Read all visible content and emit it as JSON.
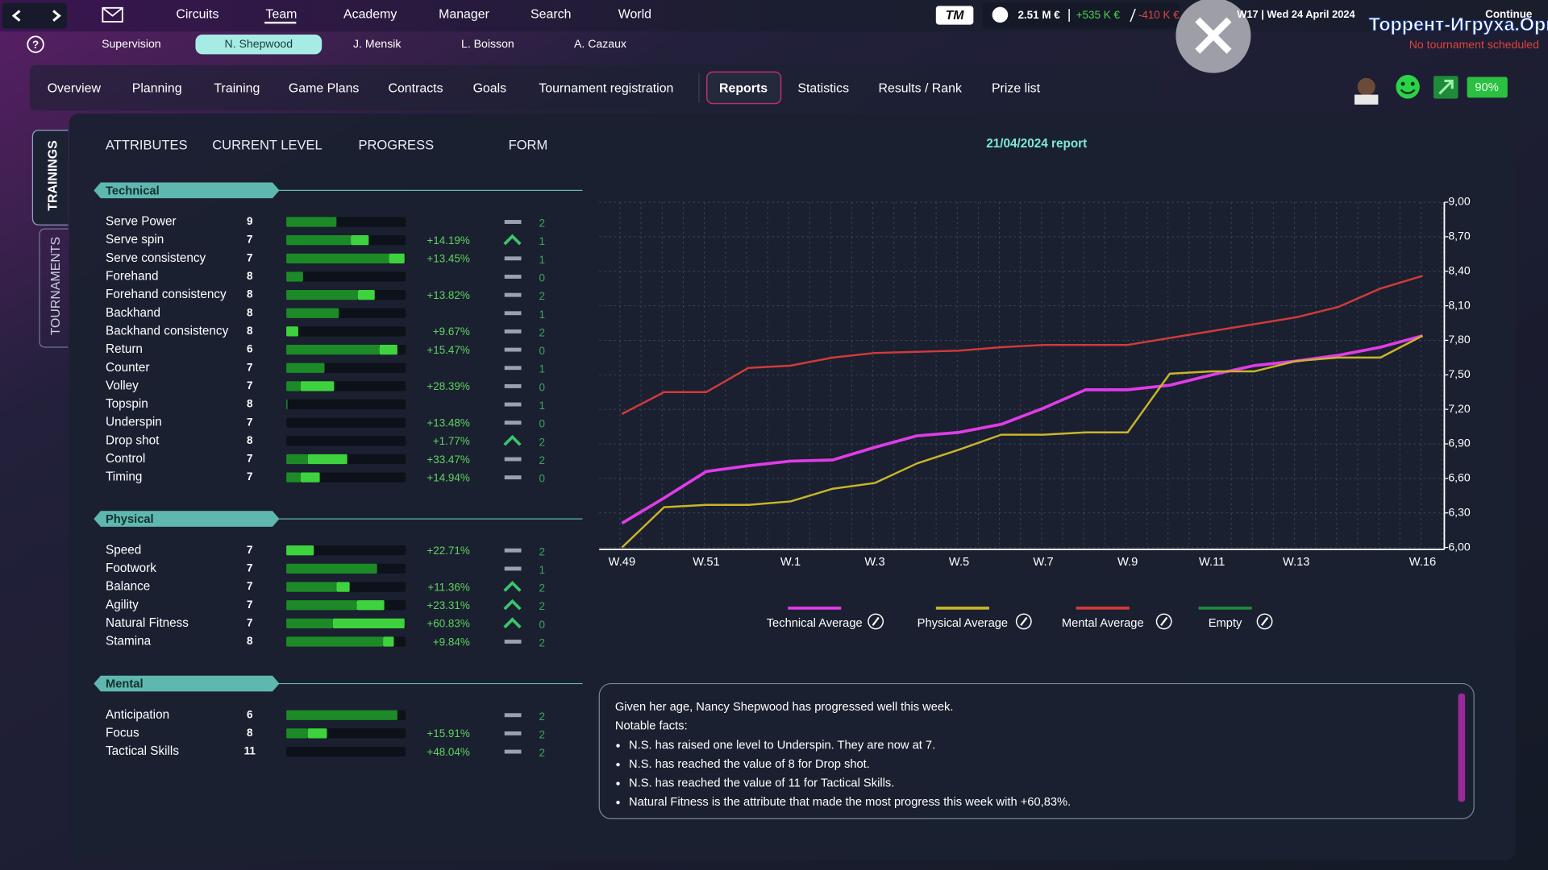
{
  "top_nav": [
    "Circuits",
    "Team",
    "Academy",
    "Manager",
    "Search",
    "World"
  ],
  "logo": "TM",
  "finance": {
    "balance": "2.51 M €",
    "income": "+535 K €",
    "expense": "-410 K €"
  },
  "date": "W17 | Wed 24 April 2024",
  "continue": "Continue",
  "watermark": "Торрент-Игруха.Орг",
  "tournament_status": "No tournament scheduled",
  "help_icon": "?",
  "players": [
    "Supervision",
    "N. Shepwood",
    "J. Mensik",
    "L. Boisson",
    "A. Cazaux"
  ],
  "tabs": [
    "Overview",
    "Planning",
    "Training",
    "Game Plans",
    "Contracts",
    "Goals",
    "Tournament registration",
    "Reports",
    "Statistics",
    "Results / Rank",
    "Prize list"
  ],
  "morale": "90%",
  "side_tabs": [
    "TRAININGS",
    "TOURNAMENTS"
  ],
  "columns": [
    "ATTRIBUTES",
    "CURRENT LEVEL",
    "PROGRESS",
    "FORM"
  ],
  "sections": [
    {
      "title": "Technical",
      "rows": [
        {
          "name": "Serve Power",
          "level": 9,
          "bar": 42,
          "gain": 0,
          "form_trend": "flat",
          "form": 2
        },
        {
          "name": "Serve spin",
          "level": 7,
          "bar": 54,
          "gain": 15,
          "progress": 14.19,
          "progress_label": "+14.19%",
          "form_trend": "up",
          "form": 1
        },
        {
          "name": "Serve consistency",
          "level": 7,
          "bar": 86,
          "gain": 13,
          "progress": 13.45,
          "progress_label": "+13.45%",
          "form_trend": "flat",
          "form": 1
        },
        {
          "name": "Forehand",
          "level": 8,
          "bar": 14,
          "gain": 0,
          "form_trend": "flat",
          "form": 0
        },
        {
          "name": "Forehand consistency",
          "level": 8,
          "bar": 60,
          "gain": 14,
          "progress": 13.82,
          "progress_label": "+13.82%",
          "form_trend": "flat",
          "form": 2
        },
        {
          "name": "Backhand",
          "level": 8,
          "bar": 44,
          "gain": 0,
          "form_trend": "flat",
          "form": 1
        },
        {
          "name": "Backhand consistency",
          "level": 8,
          "bar": 0,
          "gain": 10,
          "progress": 9.67,
          "progress_label": "+9.67%",
          "form_trend": "flat",
          "form": 2
        },
        {
          "name": "Return",
          "level": 6,
          "bar": 78,
          "gain": 15,
          "progress": 15.47,
          "progress_label": "+15.47%",
          "form_trend": "flat",
          "form": 0
        },
        {
          "name": "Counter",
          "level": 7,
          "bar": 32,
          "gain": 0,
          "form_trend": "flat",
          "form": 1
        },
        {
          "name": "Volley",
          "level": 7,
          "bar": 12,
          "gain": 28,
          "progress": 28.39,
          "progress_label": "+28.39%",
          "form_trend": "flat",
          "form": 0
        },
        {
          "name": "Topspin",
          "level": 8,
          "bar": 1,
          "gain": 0,
          "form_trend": "flat",
          "form": 1
        },
        {
          "name": "Underspin",
          "level": 7,
          "bar": 0,
          "gain": 0,
          "progress": 13.48,
          "progress_label": "+13.48%",
          "form_trend": "flat",
          "form": 0
        },
        {
          "name": "Drop shot",
          "level": 8,
          "bar": 0,
          "gain": 0,
          "progress": 1.77,
          "progress_label": "+1.77%",
          "form_trend": "up",
          "form": 2
        },
        {
          "name": "Control",
          "level": 7,
          "bar": 18,
          "gain": 33,
          "progress": 33.47,
          "progress_label": "+33.47%",
          "form_trend": "flat",
          "form": 2
        },
        {
          "name": "Timing",
          "level": 7,
          "bar": 12,
          "gain": 16,
          "progress": 14.94,
          "progress_label": "+14.94%",
          "form_trend": "flat",
          "form": 0
        }
      ]
    },
    {
      "title": "Physical",
      "rows": [
        {
          "name": "Speed",
          "level": 7,
          "bar": 0,
          "gain": 23,
          "progress": 22.71,
          "progress_label": "+22.71%",
          "form_trend": "flat",
          "form": 2
        },
        {
          "name": "Footwork",
          "level": 7,
          "bar": 76,
          "gain": 0,
          "form_trend": "flat",
          "form": 1
        },
        {
          "name": "Balance",
          "level": 7,
          "bar": 42,
          "gain": 11,
          "progress": 11.36,
          "progress_label": "+11.36%",
          "form_trend": "up",
          "form": 2
        },
        {
          "name": "Agility",
          "level": 7,
          "bar": 59,
          "gain": 23,
          "progress": 23.31,
          "progress_label": "+23.31%",
          "form_trend": "up",
          "form": 2
        },
        {
          "name": "Natural Fitness",
          "level": 7,
          "bar": 39,
          "gain": 60,
          "progress": 60.83,
          "progress_label": "+60.83%",
          "form_trend": "up",
          "form": 0
        },
        {
          "name": "Stamina",
          "level": 8,
          "bar": 81,
          "gain": 9,
          "progress": 9.84,
          "progress_label": "+9.84%",
          "form_trend": "flat",
          "form": 2
        }
      ]
    },
    {
      "title": "Mental",
      "rows": [
        {
          "name": "Anticipation",
          "level": 6,
          "bar": 93,
          "gain": 0,
          "form_trend": "flat",
          "form": 2
        },
        {
          "name": "Focus",
          "level": 8,
          "bar": 18,
          "gain": 16,
          "progress": 15.91,
          "progress_label": "+15.91%",
          "form_trend": "flat",
          "form": 2
        },
        {
          "name": "Tactical Skills",
          "level": 11,
          "bar": 0,
          "gain": 0,
          "progress": 48.04,
          "progress_label": "+48.04%",
          "form_trend": "flat",
          "form": 2
        }
      ]
    }
  ],
  "report": {
    "lines": [
      "Given her age, Nancy Shepwood has progressed well this week.",
      "Notable facts:"
    ],
    "bullets": [
      "N.S. has raised one level to Underspin. They are now at 7.",
      "N.S. has reached the value of 8 for Drop shot.",
      "N.S. has reached the value of 11 for Tactical Skills.",
      "Natural Fitness is the attribute that made the most progress this week with +60,83%."
    ]
  },
  "chart_data": {
    "type": "line",
    "title": "21/04/2024 report",
    "categories": [
      "W.49",
      null,
      "W.51",
      null,
      "W.1",
      null,
      "W.3",
      null,
      "W.5",
      null,
      "W.7",
      null,
      "W.9",
      null,
      "W.11",
      null,
      "W.13",
      null,
      null,
      "W.16"
    ],
    "series": [
      {
        "name": "Technical Average",
        "color": "#e03ce8",
        "values": [
          6.21,
          6.43,
          6.66,
          6.71,
          6.75,
          6.76,
          6.87,
          6.97,
          7.0,
          7.07,
          7.21,
          7.37,
          7.37,
          7.41,
          7.5,
          7.58,
          7.62,
          7.67,
          7.74,
          7.84
        ]
      },
      {
        "name": "Physical Average",
        "color": "#c9b52a",
        "values": [
          6.0,
          6.35,
          6.37,
          6.37,
          6.4,
          6.51,
          6.56,
          6.73,
          6.85,
          6.98,
          6.98,
          7.0,
          7.0,
          7.51,
          7.53,
          7.53,
          7.62,
          7.65,
          7.65,
          7.84
        ]
      },
      {
        "name": "Mental Average",
        "color": "#d23a3a",
        "values": [
          7.16,
          7.35,
          7.35,
          7.56,
          7.58,
          7.65,
          7.69,
          7.7,
          7.71,
          7.74,
          7.76,
          7.76,
          7.76,
          7.82,
          7.88,
          7.94,
          8.0,
          8.09,
          8.25,
          8.36
        ]
      },
      {
        "name": "Empty",
        "color": "#1f8a3a",
        "values": [
          null,
          null,
          null,
          null,
          null,
          null,
          null,
          null,
          null,
          null,
          null,
          null,
          null,
          null,
          null,
          null,
          null,
          null,
          null,
          null
        ]
      }
    ],
    "ylim": [
      6,
      9
    ],
    "yticks": [
      {
        "value": 6,
        "label": "6,00"
      },
      {
        "value": 6.3,
        "label": "6,30"
      },
      {
        "value": 6.6,
        "label": "6,60"
      },
      {
        "value": 6.9,
        "label": "6,90"
      },
      {
        "value": 7.2,
        "label": "7,20"
      },
      {
        "value": 7.5,
        "label": "7,50"
      },
      {
        "value": 7.8,
        "label": "7,80"
      },
      {
        "value": 8.1,
        "label": "8,10"
      },
      {
        "value": 8.4,
        "label": "8,40"
      },
      {
        "value": 8.7,
        "label": "8,70"
      },
      {
        "value": 9,
        "label": "9,00"
      }
    ],
    "grid": true
  }
}
